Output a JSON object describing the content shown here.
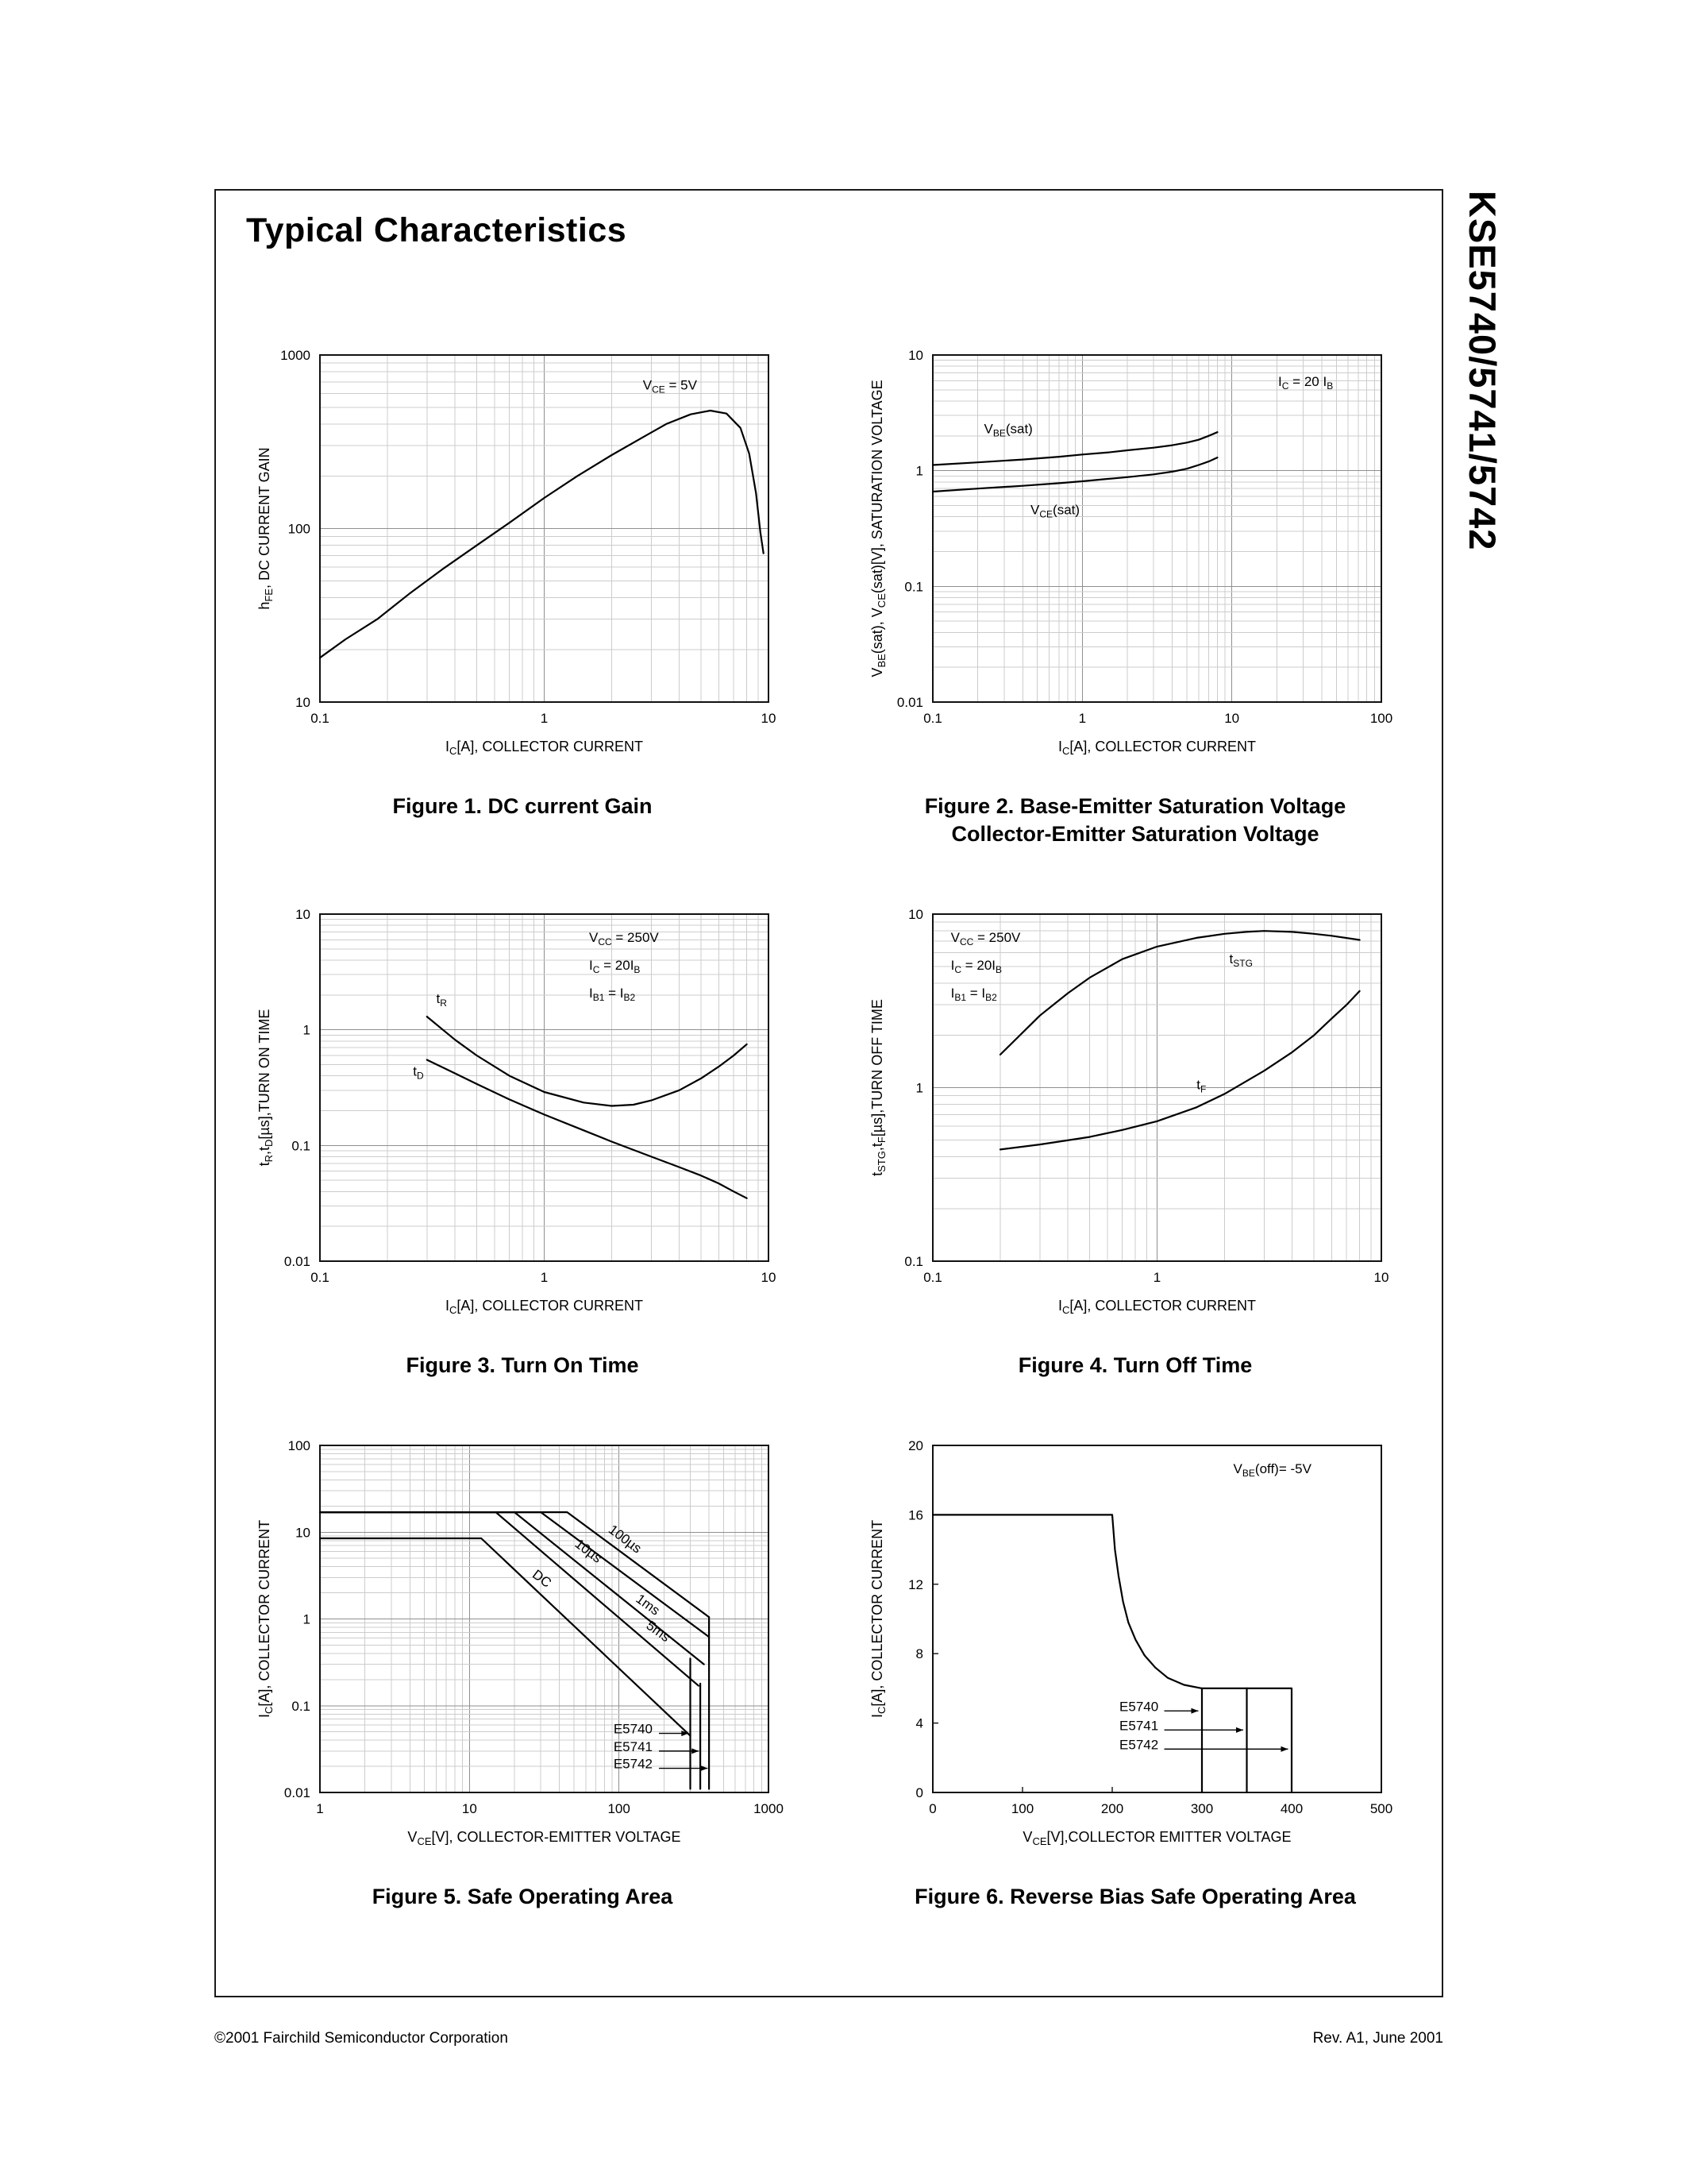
{
  "page": {
    "title": "Typical Characteristics",
    "side_title": "KSE5740/5741/5742",
    "footer_left": "©2001 Fairchild Semiconductor Corporation",
    "footer_right": "Rev. A1, June 2001"
  },
  "chart_data": [
    {
      "type": "line",
      "caption": "Figure 1. DC current Gain",
      "x": {
        "scale": "log",
        "min": 0.1,
        "max": 10,
        "title": "I~C~[A], COLLECTOR CURRENT",
        "ticks": [
          0.1,
          1,
          10
        ]
      },
      "y": {
        "scale": "log",
        "min": 10,
        "max": 1000,
        "title": "h~FE~, DC CURRENT GAIN",
        "ticks": [
          10,
          100,
          1000
        ]
      },
      "annotations": [
        {
          "text": "V~CE~ = 5V",
          "fx": 0.72,
          "fy": 0.93
        }
      ],
      "series": [
        {
          "name": "hFE",
          "points": [
            [
              0.1,
              18
            ],
            [
              0.13,
              23
            ],
            [
              0.18,
              30
            ],
            [
              0.25,
              42
            ],
            [
              0.35,
              58
            ],
            [
              0.5,
              80
            ],
            [
              0.7,
              108
            ],
            [
              1,
              150
            ],
            [
              1.4,
              200
            ],
            [
              2,
              265
            ],
            [
              2.8,
              340
            ],
            [
              3.5,
              400
            ],
            [
              4.5,
              455
            ],
            [
              5.5,
              478
            ],
            [
              6.5,
              460
            ],
            [
              7.5,
              380
            ],
            [
              8.2,
              270
            ],
            [
              8.8,
              160
            ],
            [
              9.2,
              95
            ],
            [
              9.5,
              72
            ]
          ]
        }
      ]
    },
    {
      "type": "line",
      "caption": "Figure 2. Base-Emitter Saturation Voltage\nCollector-Emitter Saturation Voltage",
      "x": {
        "scale": "log",
        "min": 0.1,
        "max": 100,
        "title": "I~C~[A], COLLECTOR CURRENT",
        "ticks": [
          0.1,
          1,
          10,
          100
        ]
      },
      "y": {
        "scale": "log",
        "min": 0.01,
        "max": 10,
        "title": "V~BE~(sat), V~CE~(sat)[V], SATURATION VOLTAGE",
        "ticks": [
          0.01,
          0.1,
          1,
          10
        ]
      },
      "annotations": [
        {
          "text": "I~C~ = 20 I~B~",
          "fx": 0.77,
          "fy": 0.94
        }
      ],
      "labels": [
        {
          "text": "V~BE~(sat)",
          "x": 0.22,
          "y": 2.1
        },
        {
          "text": "V~CE~(sat)",
          "x": 0.45,
          "y": 0.42
        }
      ],
      "series": [
        {
          "name": "VBE(sat)",
          "points": [
            [
              0.1,
              1.12
            ],
            [
              0.2,
              1.18
            ],
            [
              0.4,
              1.25
            ],
            [
              0.7,
              1.32
            ],
            [
              1,
              1.38
            ],
            [
              1.5,
              1.44
            ],
            [
              2,
              1.5
            ],
            [
              3,
              1.58
            ],
            [
              4,
              1.66
            ],
            [
              5,
              1.75
            ],
            [
              6,
              1.85
            ],
            [
              7,
              2.0
            ],
            [
              8,
              2.15
            ]
          ]
        },
        {
          "name": "VCE(sat)",
          "points": [
            [
              0.1,
              0.66
            ],
            [
              0.2,
              0.7
            ],
            [
              0.4,
              0.74
            ],
            [
              0.7,
              0.78
            ],
            [
              1,
              0.81
            ],
            [
              1.5,
              0.85
            ],
            [
              2,
              0.88
            ],
            [
              3,
              0.93
            ],
            [
              4,
              0.98
            ],
            [
              5,
              1.04
            ],
            [
              6,
              1.12
            ],
            [
              7,
              1.2
            ],
            [
              8,
              1.3
            ]
          ]
        }
      ]
    },
    {
      "type": "line",
      "caption": "Figure 3. Turn On Time",
      "x": {
        "scale": "log",
        "min": 0.1,
        "max": 10,
        "title": "I~C~[A], COLLECTOR CURRENT",
        "ticks": [
          0.1,
          1,
          10
        ]
      },
      "y": {
        "scale": "log",
        "min": 0.01,
        "max": 10,
        "title": "t~R~,t~D~[µs],TURN ON TIME",
        "ticks": [
          0.01,
          0.1,
          1,
          10
        ]
      },
      "annotations": [
        {
          "text": "V~CC~ = 250V",
          "fx": 0.6,
          "fy": 0.95
        },
        {
          "text": "I~C~ = 20I~B~",
          "fx": 0.6,
          "fy": 0.87
        },
        {
          "text": "I~B1~ = I~B2~",
          "fx": 0.6,
          "fy": 0.79
        }
      ],
      "labels": [
        {
          "text": "t~R~",
          "x": 0.33,
          "y": 1.7
        },
        {
          "text": "t~D~",
          "x": 0.26,
          "y": 0.4
        }
      ],
      "series": [
        {
          "name": "tR",
          "points": [
            [
              0.3,
              1.3
            ],
            [
              0.4,
              0.82
            ],
            [
              0.5,
              0.6
            ],
            [
              0.7,
              0.4
            ],
            [
              1,
              0.29
            ],
            [
              1.5,
              0.235
            ],
            [
              2,
              0.22
            ],
            [
              2.5,
              0.225
            ],
            [
              3,
              0.245
            ],
            [
              4,
              0.3
            ],
            [
              5,
              0.38
            ],
            [
              6,
              0.48
            ],
            [
              7,
              0.6
            ],
            [
              8,
              0.75
            ]
          ]
        },
        {
          "name": "tD",
          "points": [
            [
              0.3,
              0.55
            ],
            [
              0.4,
              0.42
            ],
            [
              0.5,
              0.34
            ],
            [
              0.7,
              0.25
            ],
            [
              1,
              0.185
            ],
            [
              1.5,
              0.135
            ],
            [
              2,
              0.108
            ],
            [
              3,
              0.08
            ],
            [
              4,
              0.065
            ],
            [
              5,
              0.055
            ],
            [
              6,
              0.047
            ],
            [
              7,
              0.04
            ],
            [
              8,
              0.035
            ]
          ]
        }
      ]
    },
    {
      "type": "line",
      "caption": "Figure 4. Turn Off Time",
      "x": {
        "scale": "log",
        "min": 0.1,
        "max": 10,
        "title": "I~C~[A], COLLECTOR CURRENT",
        "ticks": [
          0.1,
          1,
          10
        ]
      },
      "y": {
        "scale": "log",
        "min": 0.1,
        "max": 10,
        "title": "t~STG~,t~F~[µs],TURN OFF TIME",
        "ticks": [
          0.1,
          1,
          10
        ]
      },
      "annotations": [
        {
          "text": "V~CC~ = 250V",
          "fx": 0.04,
          "fy": 0.95
        },
        {
          "text": "I~C~ = 20I~B~",
          "fx": 0.04,
          "fy": 0.87
        },
        {
          "text": "I~B1~ = I~B2~",
          "fx": 0.04,
          "fy": 0.79
        }
      ],
      "labels": [
        {
          "text": "t~STG~",
          "x": 2.1,
          "y": 5.2
        },
        {
          "text": "t~F~",
          "x": 1.5,
          "y": 0.98
        }
      ],
      "series": [
        {
          "name": "tSTG",
          "points": [
            [
              0.2,
              1.55
            ],
            [
              0.3,
              2.6
            ],
            [
              0.4,
              3.5
            ],
            [
              0.5,
              4.3
            ],
            [
              0.7,
              5.5
            ],
            [
              1,
              6.5
            ],
            [
              1.5,
              7.3
            ],
            [
              2,
              7.7
            ],
            [
              2.5,
              7.9
            ],
            [
              3,
              8.0
            ],
            [
              4,
              7.9
            ],
            [
              5,
              7.7
            ],
            [
              6,
              7.5
            ],
            [
              8,
              7.1
            ]
          ]
        },
        {
          "name": "tF",
          "points": [
            [
              0.2,
              0.44
            ],
            [
              0.3,
              0.47
            ],
            [
              0.5,
              0.52
            ],
            [
              0.7,
              0.57
            ],
            [
              1,
              0.64
            ],
            [
              1.5,
              0.77
            ],
            [
              2,
              0.92
            ],
            [
              3,
              1.25
            ],
            [
              4,
              1.6
            ],
            [
              5,
              2.0
            ],
            [
              6,
              2.5
            ],
            [
              7,
              3.0
            ],
            [
              8,
              3.6
            ]
          ]
        }
      ]
    },
    {
      "type": "line",
      "caption": "Figure 5. Safe Operating Area",
      "x": {
        "scale": "log",
        "min": 1,
        "max": 1000,
        "title": "V~CE~[V], COLLECTOR-EMITTER VOLTAGE",
        "ticks": [
          1,
          10,
          100,
          1000
        ]
      },
      "y": {
        "scale": "log",
        "min": 0.01,
        "max": 100,
        "title": "I~C~[A], COLLECTOR CURRENT",
        "ticks": [
          0.01,
          0.1,
          1,
          10,
          100
        ]
      },
      "labels": [
        {
          "text": "100µs",
          "x": 84,
          "y": 10.2,
          "rotate": 37
        },
        {
          "text": "10µs",
          "x": 50,
          "y": 7.0,
          "rotate": 37
        },
        {
          "text": "DC",
          "x": 26,
          "y": 3.1,
          "rotate": 37
        },
        {
          "text": "1ms",
          "x": 128,
          "y": 1.62,
          "rotate": 36
        },
        {
          "text": "5ms",
          "x": 150,
          "y": 0.8,
          "rotate": 36
        },
        {
          "text": "E5740",
          "x": 92,
          "y": 0.048
        },
        {
          "text": "E5741",
          "x": 92,
          "y": 0.03
        },
        {
          "text": "E5742",
          "x": 92,
          "y": 0.019
        }
      ],
      "arrows": [
        {
          "x1": 185,
          "y1": 0.048,
          "x2": 292,
          "y2": 0.048
        },
        {
          "x1": 185,
          "y1": 0.03,
          "x2": 342,
          "y2": 0.03
        },
        {
          "x1": 185,
          "y1": 0.019,
          "x2": 392,
          "y2": 0.019
        }
      ],
      "series": [
        {
          "name": "100us",
          "points": [
            [
              1,
              17
            ],
            [
              45,
              17
            ],
            [
              400,
              1.05
            ]
          ]
        },
        {
          "name": "10us",
          "points": [
            [
              1,
              17
            ],
            [
              30,
              17
            ],
            [
              400,
              0.62
            ]
          ]
        },
        {
          "name": "1ms",
          "points": [
            [
              1,
              17
            ],
            [
              20,
              17
            ],
            [
              370,
              0.3
            ]
          ]
        },
        {
          "name": "5ms",
          "points": [
            [
              1,
              17
            ],
            [
              15,
              17
            ],
            [
              340,
              0.17
            ]
          ]
        },
        {
          "name": "DC",
          "points": [
            [
              1,
              8.5
            ],
            [
              12,
              8.5
            ],
            [
              300,
              0.045
            ]
          ]
        },
        {
          "name": "E5740-limit",
          "points": [
            [
              300,
              0.35
            ],
            [
              300,
              0.011
            ]
          ]
        },
        {
          "name": "E5741-limit",
          "points": [
            [
              350,
              0.18
            ],
            [
              350,
              0.011
            ]
          ]
        },
        {
          "name": "E5742-limit",
          "points": [
            [
              400,
              1.05
            ],
            [
              400,
              0.011
            ]
          ]
        }
      ]
    },
    {
      "type": "line",
      "caption": "Figure 6. Reverse Bias Safe Operating Area",
      "x": {
        "scale": "linear",
        "min": 0,
        "max": 500,
        "title": "V~CE~[V],COLLECTOR EMITTER VOLTAGE",
        "ticks": [
          0,
          100,
          200,
          300,
          400,
          500
        ]
      },
      "y": {
        "scale": "linear",
        "min": 0,
        "max": 20,
        "title": "I~C~[A], COLLECTOR CURRENT",
        "ticks": [
          0,
          4,
          8,
          12,
          16,
          20
        ]
      },
      "annotations": [
        {
          "text": "V~BE~(off)= -5V",
          "fx": 0.67,
          "fy": 0.95
        }
      ],
      "labels": [
        {
          "text": "E5740",
          "x": 208,
          "y": 4.7
        },
        {
          "text": "E5741",
          "x": 208,
          "y": 3.6
        },
        {
          "text": "E5742",
          "x": 208,
          "y": 2.5
        }
      ],
      "arrows": [
        {
          "x1": 258,
          "y1": 4.7,
          "x2": 296,
          "y2": 4.7
        },
        {
          "x1": 258,
          "y1": 3.6,
          "x2": 346,
          "y2": 3.6
        },
        {
          "x1": 258,
          "y1": 2.5,
          "x2": 396,
          "y2": 2.5
        }
      ],
      "series": [
        {
          "name": "RBSOA",
          "points": [
            [
              0,
              16
            ],
            [
              200,
              16
            ],
            [
              203,
              14
            ],
            [
              207,
              12.5
            ],
            [
              212,
              11
            ],
            [
              218,
              9.8
            ],
            [
              226,
              8.8
            ],
            [
              236,
              7.9
            ],
            [
              248,
              7.2
            ],
            [
              262,
              6.6
            ],
            [
              280,
              6.2
            ],
            [
              300,
              6
            ],
            [
              400,
              6
            ],
            [
              400,
              0
            ]
          ]
        },
        {
          "name": "E5740-limit",
          "points": [
            [
              300,
              6
            ],
            [
              300,
              0
            ]
          ]
        },
        {
          "name": "E5741-limit",
          "points": [
            [
              350,
              6
            ],
            [
              350,
              0
            ]
          ]
        }
      ]
    }
  ]
}
